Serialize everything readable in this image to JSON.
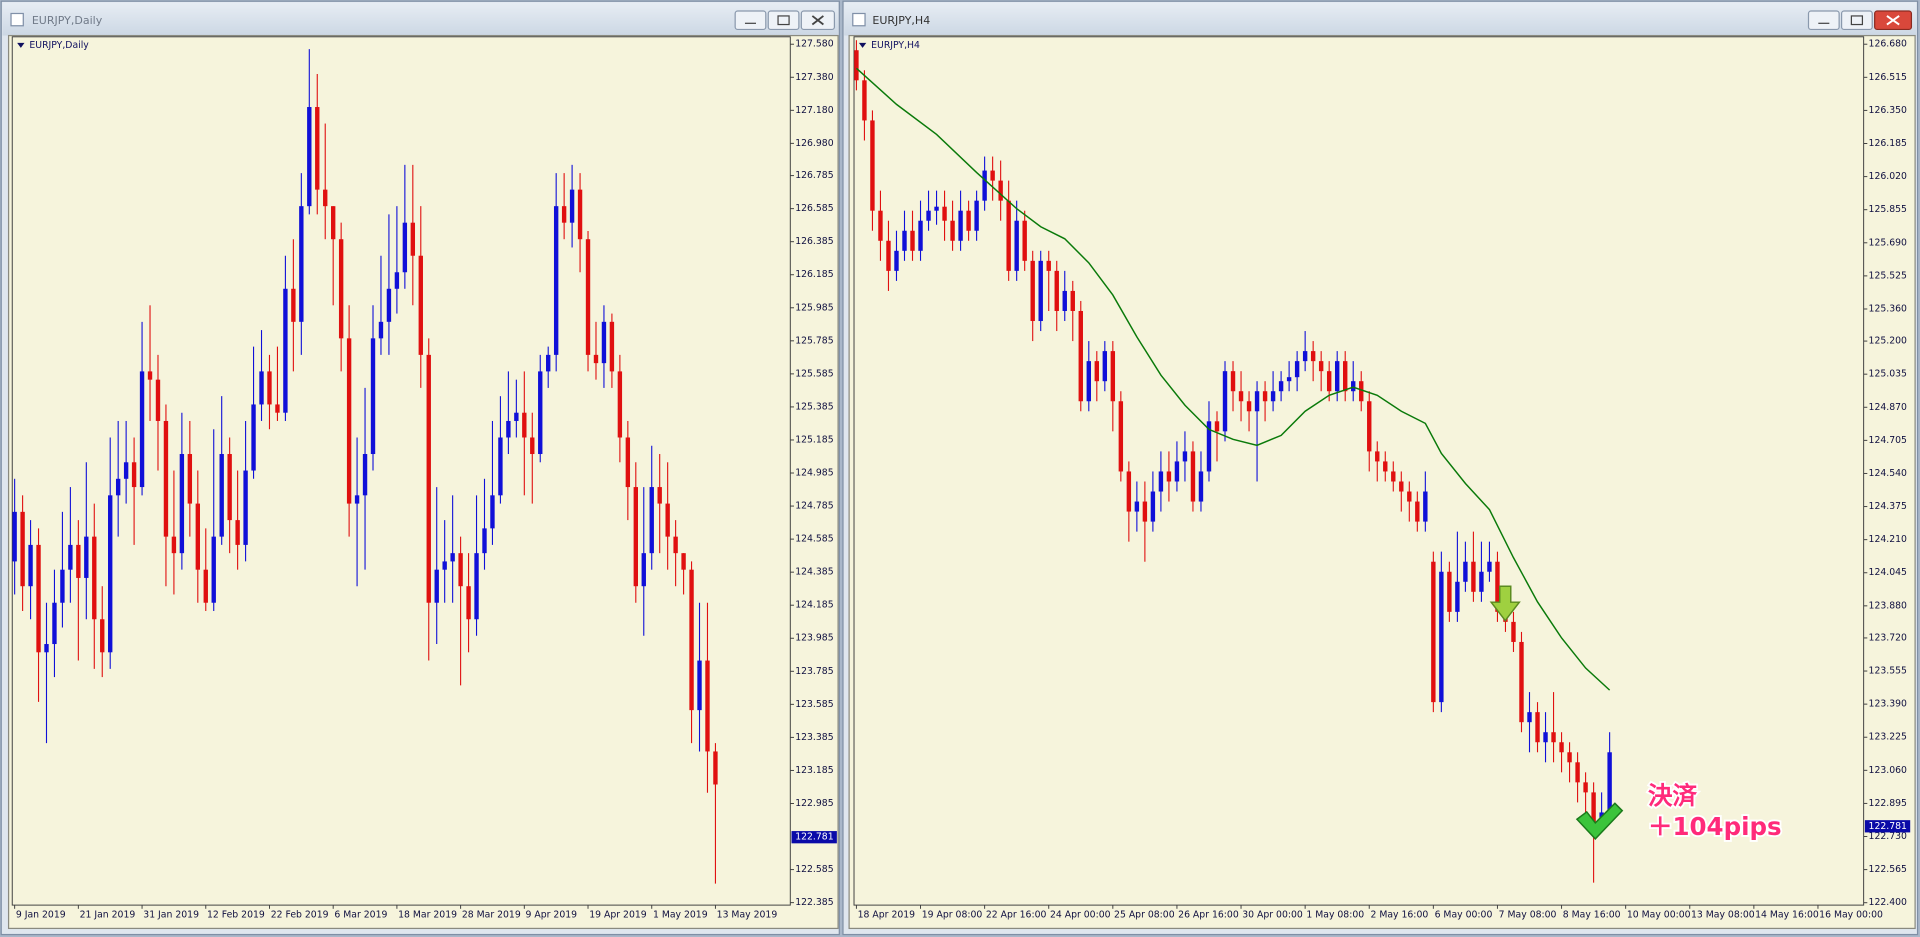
{
  "windows": [
    {
      "title": "EURJPY,Daily"
    },
    {
      "title": "EURJPY,H4"
    }
  ],
  "chart_data": [
    {
      "type": "candlestick",
      "title": "EURJPY,Daily",
      "label": "EURJPY,Daily",
      "up_color": "#1010d8",
      "down_color": "#e01010",
      "grid": false,
      "xlim": [
        -0.3,
        97.4
      ],
      "xticks": [
        {
          "value": 0,
          "label": "9 Jan 2019"
        },
        {
          "value": 8,
          "label": "21 Jan 2019"
        },
        {
          "value": 16,
          "label": "31 Jan 2019"
        },
        {
          "value": 24,
          "label": "12 Feb 2019"
        },
        {
          "value": 32,
          "label": "22 Feb 2019"
        },
        {
          "value": 40,
          "label": "6 Mar 2019"
        },
        {
          "value": 48,
          "label": "18 Mar 2019"
        },
        {
          "value": 56,
          "label": "28 Mar 2019"
        },
        {
          "value": 64,
          "label": "9 Apr 2019"
        },
        {
          "value": 72,
          "label": "19 Apr 2019"
        },
        {
          "value": 80,
          "label": "1 May 2019"
        },
        {
          "value": 88,
          "label": "13 May 2019"
        }
      ],
      "ylim": [
        122.37,
        127.625
      ],
      "yticks": [
        {
          "value": 127.58,
          "label": "127.580"
        },
        {
          "value": 127.38,
          "label": "127.380"
        },
        {
          "value": 127.18,
          "label": "127.180"
        },
        {
          "value": 126.98,
          "label": "126.980"
        },
        126.785,
        126.585,
        126.385,
        126.185,
        125.985,
        125.785,
        125.585,
        125.385,
        125.185,
        124.985,
        124.785,
        124.585,
        124.385,
        124.185,
        123.985,
        123.785,
        123.585,
        123.385,
        123.185,
        122.985,
        122.585,
        122.385
      ],
      "price_label": 122.781,
      "open": [
        124.45,
        124.75,
        124.3,
        124.55,
        123.9,
        123.95,
        124.2,
        124.4,
        124.55,
        124.35,
        124.6,
        124.1,
        123.9,
        124.85,
        124.95,
        125.05,
        124.9,
        125.6,
        125.55,
        125.3,
        124.6,
        124.5,
        125.1,
        124.8,
        124.4,
        124.2,
        124.6,
        125.1,
        124.7,
        124.55,
        125.0,
        125.4,
        125.6,
        125.4,
        125.35,
        126.1,
        125.9,
        126.6,
        127.2,
        126.7,
        126.6,
        126.4,
        125.8,
        124.8,
        124.85,
        125.1,
        125.8,
        125.9,
        126.1,
        126.2,
        126.5,
        126.3,
        125.7,
        124.2,
        124.4,
        124.45,
        124.5,
        124.3,
        124.1,
        124.5,
        124.65,
        124.85,
        125.2,
        125.3,
        125.35,
        125.2,
        125.1,
        125.6,
        125.7,
        126.6,
        126.5,
        126.7,
        126.4,
        125.7,
        125.65,
        125.9,
        125.6,
        125.2,
        124.9,
        124.3,
        124.5,
        124.9,
        124.8,
        124.6,
        124.5,
        124.4,
        123.55,
        123.85,
        123.3
      ],
      "high": [
        124.95,
        124.85,
        124.7,
        124.65,
        124.2,
        124.4,
        124.75,
        124.9,
        124.7,
        125.05,
        124.8,
        124.3,
        125.2,
        125.3,
        125.3,
        125.2,
        125.9,
        126.0,
        125.7,
        125.4,
        125.0,
        125.35,
        125.3,
        125.0,
        124.65,
        125.25,
        125.45,
        125.2,
        125.0,
        125.3,
        125.75,
        125.85,
        125.7,
        125.75,
        126.3,
        126.4,
        126.8,
        127.55,
        127.4,
        127.1,
        126.6,
        126.5,
        126.0,
        125.2,
        125.5,
        126.0,
        126.3,
        126.55,
        126.6,
        126.85,
        126.85,
        126.6,
        125.8,
        124.9,
        124.7,
        124.85,
        124.6,
        124.5,
        124.85,
        124.95,
        125.3,
        125.45,
        125.6,
        125.55,
        125.6,
        125.35,
        125.7,
        125.75,
        126.8,
        126.8,
        126.85,
        126.8,
        126.45,
        125.9,
        126.0,
        125.95,
        125.7,
        125.3,
        125.05,
        124.9,
        125.15,
        125.1,
        125.05,
        124.7,
        124.5,
        124.45,
        124.2,
        124.2,
        123.35
      ],
      "low": [
        124.25,
        124.15,
        124.1,
        123.6,
        123.35,
        123.75,
        124.05,
        124.2,
        123.85,
        124.1,
        123.8,
        123.75,
        123.8,
        124.6,
        124.8,
        124.55,
        124.85,
        125.3,
        125.0,
        124.3,
        124.25,
        124.4,
        124.6,
        124.2,
        124.15,
        124.15,
        124.55,
        124.5,
        124.4,
        124.45,
        124.95,
        125.3,
        125.25,
        125.3,
        125.3,
        125.6,
        125.7,
        126.55,
        126.55,
        126.4,
        126.0,
        125.6,
        124.6,
        124.3,
        124.4,
        125.0,
        125.7,
        125.7,
        125.95,
        126.1,
        126.0,
        125.5,
        123.85,
        123.95,
        124.2,
        124.2,
        123.7,
        123.9,
        124.0,
        124.4,
        124.55,
        124.8,
        125.1,
        125.2,
        124.85,
        124.8,
        125.05,
        125.5,
        125.6,
        126.4,
        126.35,
        126.2,
        125.6,
        125.55,
        125.5,
        125.5,
        125.05,
        124.7,
        124.2,
        124.0,
        124.4,
        124.5,
        124.4,
        124.3,
        124.25,
        123.35,
        123.3,
        123.05,
        122.5
      ],
      "close": [
        124.75,
        124.3,
        124.55,
        123.9,
        123.95,
        124.2,
        124.4,
        124.55,
        124.35,
        124.6,
        124.1,
        123.9,
        124.85,
        124.95,
        125.05,
        124.9,
        125.6,
        125.55,
        125.3,
        124.6,
        124.5,
        125.1,
        124.8,
        124.4,
        124.2,
        124.6,
        125.1,
        124.7,
        124.55,
        125.0,
        125.4,
        125.6,
        125.4,
        125.35,
        126.1,
        125.9,
        126.6,
        127.2,
        126.7,
        126.6,
        126.4,
        125.8,
        124.8,
        124.85,
        125.1,
        125.8,
        125.9,
        126.1,
        126.2,
        126.5,
        126.3,
        125.7,
        124.2,
        124.4,
        124.45,
        124.5,
        124.3,
        124.1,
        124.5,
        124.65,
        124.85,
        125.2,
        125.3,
        125.35,
        125.2,
        125.1,
        125.6,
        125.7,
        126.6,
        126.5,
        126.7,
        126.4,
        125.7,
        125.65,
        125.9,
        125.6,
        125.2,
        124.9,
        124.3,
        124.5,
        124.9,
        124.8,
        124.6,
        124.5,
        124.4,
        123.55,
        123.85,
        123.3,
        123.1
      ]
    },
    {
      "type": "candlestick",
      "title": "EURJPY,H4",
      "label": "EURJPY,H4",
      "up_color": "#1010d8",
      "down_color": "#e01010",
      "grid": false,
      "xlim": [
        -0.3,
        125.7
      ],
      "xticks": [
        {
          "value": 0,
          "label": "18 Apr 2019"
        },
        {
          "value": 8,
          "label": "19 Apr 08:00"
        },
        {
          "value": 16,
          "label": "22 Apr 16:00"
        },
        {
          "value": 24,
          "label": "24 Apr 00:00"
        },
        {
          "value": 32,
          "label": "25 Apr 08:00"
        },
        {
          "value": 40,
          "label": "26 Apr 16:00"
        },
        {
          "value": 48,
          "label": "30 Apr 00:00"
        },
        {
          "value": 56,
          "label": "1 May 08:00"
        },
        {
          "value": 64,
          "label": "2 May 16:00"
        },
        {
          "value": 72,
          "label": "6 May 00:00"
        },
        {
          "value": 80,
          "label": "7 May 08:00"
        },
        {
          "value": 88,
          "label": "8 May 16:00"
        },
        {
          "value": 96,
          "label": "10 May 00:00"
        },
        {
          "value": 104,
          "label": "13 May 08:00"
        },
        {
          "value": 112,
          "label": "14 May 16:00"
        },
        {
          "value": 120,
          "label": "16 May 00:00"
        }
      ],
      "ylim": [
        122.388,
        126.717
      ],
      "yticks": [
        {
          "value": 126.68,
          "label": "126.680"
        },
        126.515,
        {
          "value": 126.35,
          "label": "126.350"
        },
        126.185,
        {
          "value": 126.02,
          "label": "126.020"
        },
        125.855,
        {
          "value": 125.69,
          "label": "125.690"
        },
        125.525,
        {
          "value": 125.36,
          "label": "125.360"
        },
        {
          "value": 125.2,
          "label": "125.200"
        },
        125.035,
        {
          "value": 124.87,
          "label": "124.870"
        },
        124.705,
        {
          "value": 124.54,
          "label": "124.540"
        },
        124.375,
        {
          "value": 124.21,
          "label": "124.210"
        },
        124.045,
        {
          "value": 123.88,
          "label": "123.880"
        },
        {
          "value": 123.72,
          "label": "123.720"
        },
        123.555,
        {
          "value": 123.39,
          "label": "123.390"
        },
        123.225,
        {
          "value": 123.06,
          "label": "123.060"
        },
        122.895,
        {
          "value": 122.73,
          "label": "122.730"
        },
        122.565,
        {
          "value": 122.4,
          "label": "122.400"
        }
      ],
      "price_label": 122.781,
      "annotation": [
        "決済",
        "＋104pips"
      ],
      "line": {
        "color": "#0a7a0a",
        "x": [
          0,
          5,
          10,
          15,
          20,
          23,
          26,
          29,
          32,
          35,
          38,
          41,
          44,
          47,
          50,
          53,
          56,
          59,
          62,
          65,
          68,
          71,
          73,
          76,
          79,
          82,
          85,
          88,
          91,
          94
        ],
        "values": [
          126.56,
          126.38,
          126.23,
          126.04,
          125.86,
          125.77,
          125.71,
          125.59,
          125.43,
          125.22,
          125.03,
          124.88,
          124.76,
          124.71,
          124.68,
          124.73,
          124.85,
          124.93,
          124.97,
          124.93,
          124.85,
          124.79,
          124.64,
          124.49,
          124.36,
          124.12,
          123.9,
          123.72,
          123.57,
          123.46
        ]
      },
      "open": [
        126.65,
        126.5,
        126.3,
        125.85,
        125.7,
        125.55,
        125.65,
        125.75,
        125.65,
        125.8,
        125.85,
        125.87,
        125.8,
        125.7,
        125.85,
        125.75,
        125.9,
        126.05,
        126.0,
        125.9,
        125.55,
        125.8,
        125.6,
        125.3,
        125.6,
        125.55,
        125.35,
        125.45,
        125.35,
        124.9,
        125.1,
        125.0,
        125.15,
        124.9,
        124.55,
        124.35,
        124.4,
        124.3,
        124.45,
        124.55,
        124.5,
        124.6,
        124.65,
        124.4,
        124.55,
        124.8,
        124.75,
        125.05,
        124.95,
        124.9,
        124.85,
        124.95,
        124.9,
        124.95,
        125.0,
        125.02,
        125.1,
        125.15,
        125.1,
        125.05,
        124.95,
        125.1,
        124.95,
        125.0,
        124.9,
        124.65,
        124.6,
        124.55,
        124.5,
        124.45,
        124.4,
        124.3,
        124.1,
        123.4,
        124.05,
        123.85,
        124.0,
        124.1,
        123.95,
        124.05,
        124.1,
        123.85,
        123.8,
        123.7,
        123.3,
        123.35,
        123.2,
        123.25,
        123.2,
        123.15,
        123.1,
        123.0,
        122.95,
        122.8,
        122.85
      ],
      "high": [
        126.7,
        126.55,
        126.35,
        125.95,
        125.8,
        125.75,
        125.85,
        125.85,
        125.9,
        125.95,
        125.95,
        125.95,
        125.9,
        125.95,
        125.9,
        125.95,
        126.12,
        126.12,
        126.1,
        126.0,
        125.9,
        125.85,
        125.65,
        125.65,
        125.65,
        125.6,
        125.55,
        125.5,
        125.4,
        125.2,
        125.15,
        125.2,
        125.2,
        124.95,
        124.6,
        124.5,
        124.5,
        124.55,
        124.65,
        124.65,
        124.7,
        124.75,
        124.7,
        124.65,
        124.9,
        124.85,
        125.1,
        125.1,
        125.05,
        124.95,
        125.0,
        125.0,
        125.05,
        125.05,
        125.1,
        125.15,
        125.25,
        125.2,
        125.15,
        125.1,
        125.15,
        125.15,
        125.1,
        125.05,
        124.95,
        124.7,
        124.65,
        124.6,
        124.55,
        124.5,
        124.45,
        124.55,
        124.15,
        124.15,
        124.1,
        124.25,
        124.2,
        124.25,
        124.2,
        124.2,
        124.15,
        123.95,
        123.85,
        123.75,
        123.45,
        123.4,
        123.35,
        123.45,
        123.25,
        123.2,
        123.15,
        123.05,
        123.0,
        122.95,
        123.25
      ],
      "low": [
        126.45,
        126.2,
        125.75,
        125.6,
        125.45,
        125.5,
        125.6,
        125.6,
        125.6,
        125.75,
        125.78,
        125.7,
        125.65,
        125.65,
        125.7,
        125.7,
        125.85,
        125.9,
        125.8,
        125.5,
        125.5,
        125.55,
        125.2,
        125.25,
        125.35,
        125.25,
        125.3,
        125.2,
        124.85,
        124.85,
        124.9,
        124.95,
        124.75,
        124.5,
        124.2,
        124.25,
        124.1,
        124.25,
        124.35,
        124.4,
        124.45,
        124.5,
        124.35,
        124.35,
        124.5,
        124.6,
        124.7,
        124.85,
        124.8,
        124.75,
        124.5,
        124.8,
        124.85,
        124.9,
        124.95,
        124.95,
        125.05,
        125.0,
        124.95,
        124.9,
        124.9,
        124.9,
        124.9,
        124.85,
        124.55,
        124.5,
        124.5,
        124.45,
        124.35,
        124.3,
        124.25,
        124.25,
        123.35,
        123.35,
        123.8,
        123.8,
        123.95,
        123.9,
        123.9,
        124.0,
        123.8,
        123.75,
        123.65,
        123.25,
        123.15,
        123.15,
        123.1,
        123.1,
        123.05,
        123.0,
        122.9,
        122.85,
        122.5,
        122.75,
        122.8
      ],
      "close": [
        126.5,
        126.3,
        125.85,
        125.7,
        125.55,
        125.65,
        125.75,
        125.65,
        125.8,
        125.85,
        125.87,
        125.8,
        125.7,
        125.85,
        125.75,
        125.9,
        126.05,
        126.0,
        125.9,
        125.55,
        125.8,
        125.6,
        125.3,
        125.6,
        125.55,
        125.35,
        125.45,
        125.35,
        124.9,
        125.1,
        125.0,
        125.15,
        124.9,
        124.55,
        124.35,
        124.4,
        124.3,
        124.45,
        124.55,
        124.5,
        124.6,
        124.65,
        124.4,
        124.55,
        124.8,
        124.75,
        125.05,
        124.95,
        124.9,
        124.85,
        124.95,
        124.9,
        124.95,
        125.0,
        125.02,
        125.1,
        125.15,
        125.1,
        125.05,
        124.95,
        125.1,
        124.95,
        125.0,
        124.9,
        124.65,
        124.6,
        124.55,
        124.5,
        124.45,
        124.4,
        124.3,
        124.45,
        123.4,
        124.05,
        123.85,
        124.0,
        124.1,
        123.95,
        124.05,
        124.1,
        123.85,
        123.8,
        123.7,
        123.3,
        123.35,
        123.2,
        123.25,
        123.2,
        123.15,
        123.1,
        123.0,
        122.95,
        122.8,
        122.85,
        123.15
      ]
    }
  ]
}
